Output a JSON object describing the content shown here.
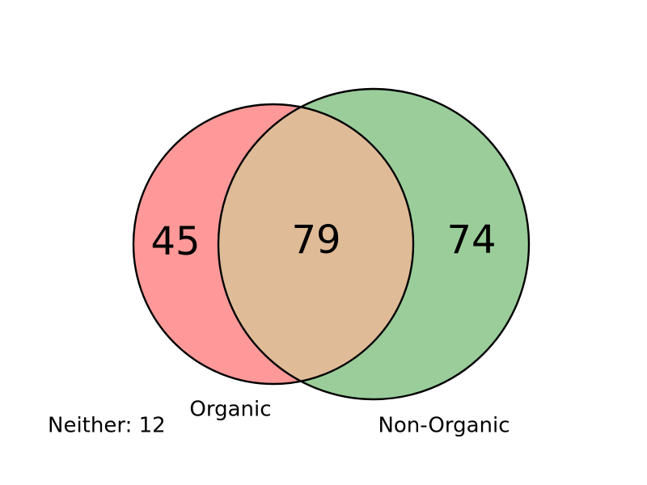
{
  "venn": {
    "sets": [
      {
        "name": "Organic",
        "only_count": "45",
        "fill": "#ff9999"
      },
      {
        "name": "Non-Organic",
        "only_count": "74",
        "fill": "#9acd9a"
      }
    ],
    "intersection": {
      "count": "79",
      "fill": "#dfbb97"
    },
    "neither": {
      "label": "Neither: 12",
      "count": 12
    }
  }
}
